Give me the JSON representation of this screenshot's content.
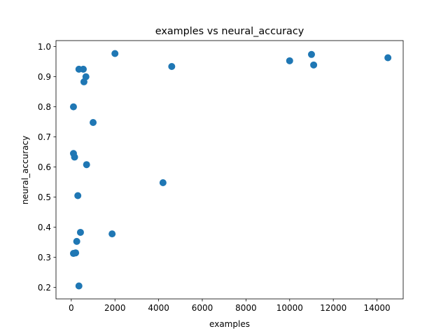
{
  "chart_data": {
    "type": "scatter",
    "title": "examples vs neural_accuracy",
    "xlabel": "examples",
    "ylabel": "neural_accuracy",
    "xlim": [
      -700,
      15200
    ],
    "ylim": [
      0.162,
      1.02
    ],
    "xticks": [
      0,
      2000,
      4000,
      6000,
      8000,
      10000,
      12000,
      14000
    ],
    "yticks": [
      0.2,
      0.3,
      0.4,
      0.5,
      0.6,
      0.7,
      0.8,
      0.9,
      1.0
    ],
    "xtick_labels": [
      "0",
      "2000",
      "4000",
      "6000",
      "8000",
      "10000",
      "12000",
      "14000"
    ],
    "ytick_labels": [
      "0.2",
      "0.3",
      "0.4",
      "0.5",
      "0.6",
      "0.7",
      "0.8",
      "0.9",
      "1.0"
    ],
    "grid": false,
    "marker_color": "#1f77b4",
    "points": [
      {
        "x": 100,
        "y": 0.8
      },
      {
        "x": 100,
        "y": 0.645
      },
      {
        "x": 150,
        "y": 0.633
      },
      {
        "x": 100,
        "y": 0.313
      },
      {
        "x": 200,
        "y": 0.315
      },
      {
        "x": 250,
        "y": 0.353
      },
      {
        "x": 300,
        "y": 0.505
      },
      {
        "x": 350,
        "y": 0.205
      },
      {
        "x": 350,
        "y": 0.925
      },
      {
        "x": 420,
        "y": 0.383
      },
      {
        "x": 550,
        "y": 0.925
      },
      {
        "x": 580,
        "y": 0.883
      },
      {
        "x": 670,
        "y": 0.9
      },
      {
        "x": 700,
        "y": 0.608
      },
      {
        "x": 1000,
        "y": 0.748
      },
      {
        "x": 1870,
        "y": 0.378
      },
      {
        "x": 2000,
        "y": 0.977
      },
      {
        "x": 4200,
        "y": 0.548
      },
      {
        "x": 4600,
        "y": 0.934
      },
      {
        "x": 10000,
        "y": 0.953
      },
      {
        "x": 11000,
        "y": 0.974
      },
      {
        "x": 11100,
        "y": 0.939
      },
      {
        "x": 14500,
        "y": 0.963
      }
    ]
  }
}
